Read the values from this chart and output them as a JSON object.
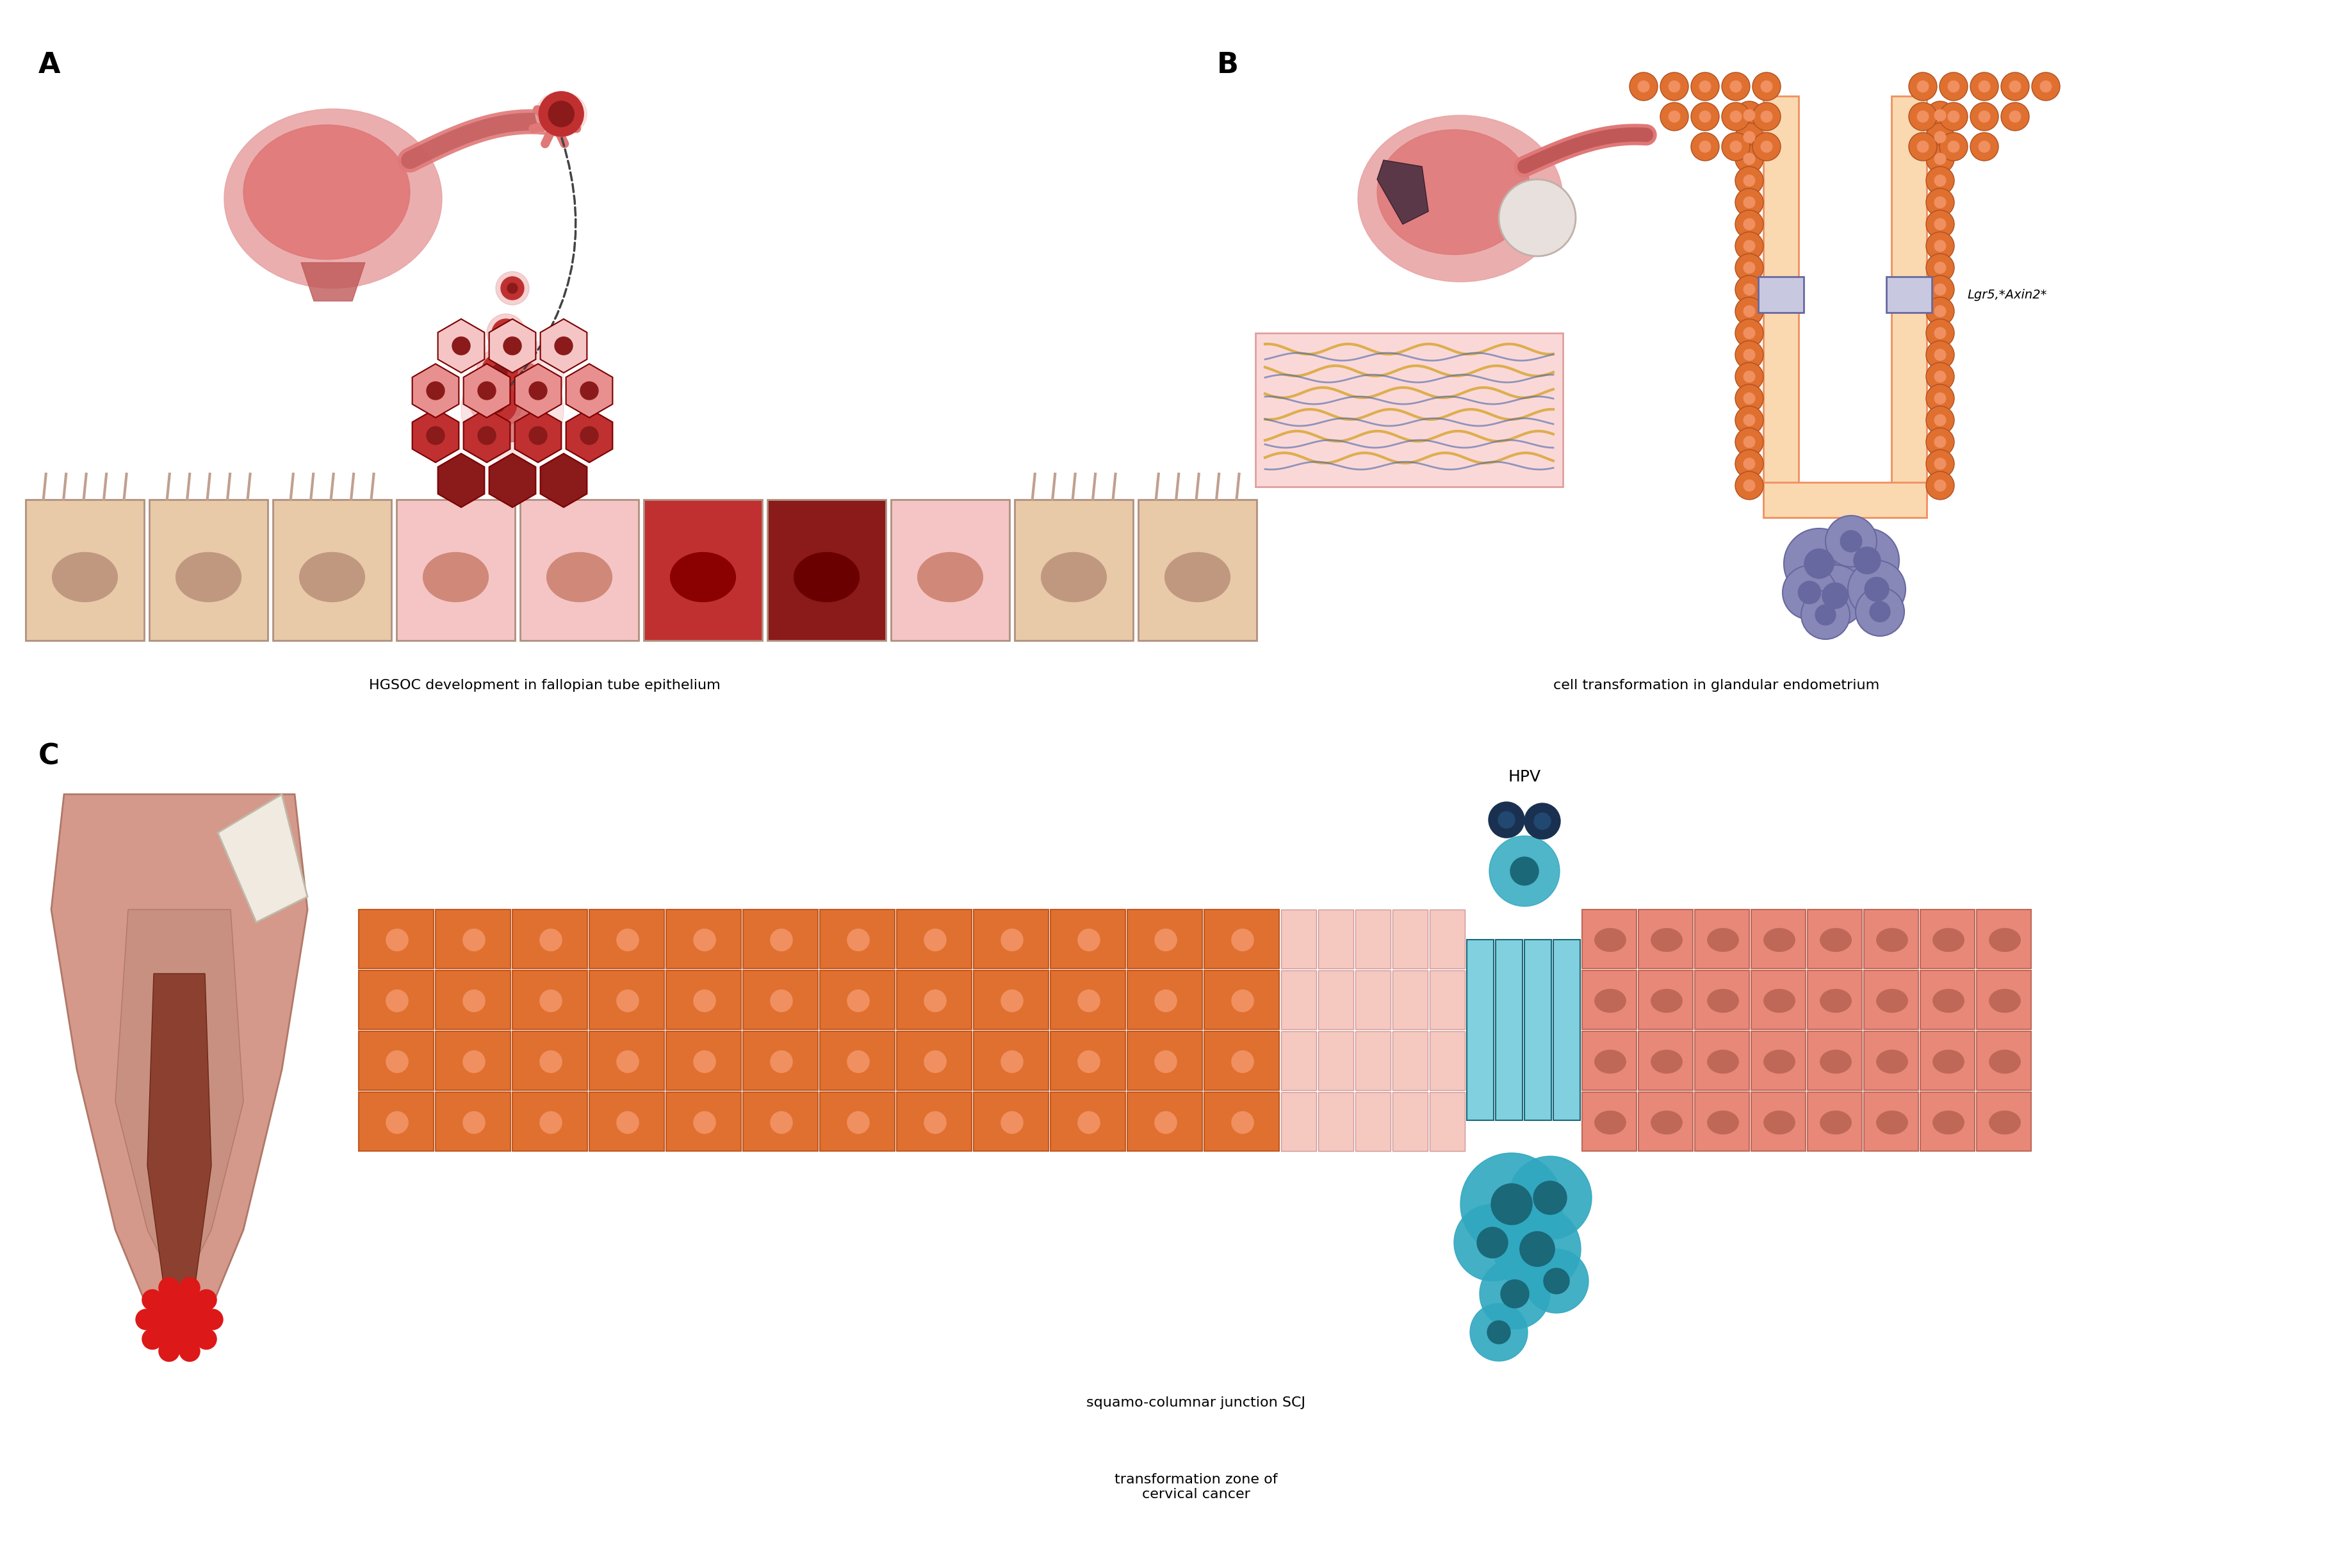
{
  "bg_color": "#ffffff",
  "panel_label_fontsize": 32,
  "caption_fontsize": 16,
  "lgr5_label": "Lgr5,*Axin2*",
  "hpv_label": "HPV",
  "caption_A": "HGSOC development in fallopian tube epithelium",
  "caption_B": "cell transformation in glandular endometrium",
  "caption_C1": "squamo-columnar junction SCJ",
  "caption_C2": "transformation zone of\ncervical cancer",
  "colors": {
    "dark_red": "#8B1A1A",
    "medium_red": "#C03030",
    "light_red": "#E89090",
    "pale_pink": "#F5C5C5",
    "pale_tan": "#E8C9A8",
    "tan_dark": "#C8A888",
    "uterus_pink": "#E07878",
    "uterus_dark": "#C05858",
    "uterus_outer": "#E8A0A0",
    "orange_dark": "#E07030",
    "orange_med": "#F09060",
    "orange_light": "#F5C090",
    "orange_pale": "#FAD8B0",
    "cyan_dark": "#1A6878",
    "cyan_med": "#30A8C0",
    "cyan_light": "#80D0E0",
    "salmon": "#E88878",
    "salmon_light": "#F0B0A0",
    "purple_dark": "#6868A0",
    "purple_med": "#8888B8",
    "purple_light": "#C8C8E0",
    "purple_pale": "#D8D8F0",
    "brown_dark": "#8B4030",
    "brown_med": "#B06040",
    "brown_light": "#C89080",
    "skin": "#D4998A",
    "skin_dark": "#B07868",
    "yellow_gold": "#D4A020",
    "blue_dark": "#1A3050",
    "blue_med": "#204870",
    "gray_light": "#E8E0E0",
    "cream": "#F0EAE0"
  }
}
